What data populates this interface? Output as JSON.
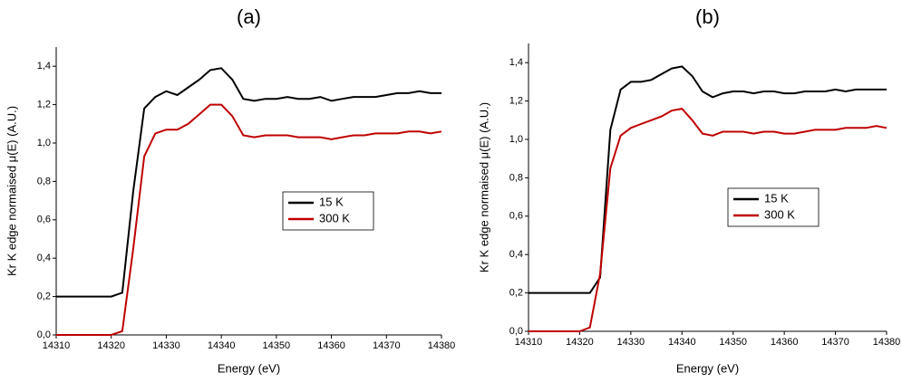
{
  "chart_data": [
    {
      "type": "line",
      "title": "(a)",
      "xlabel": "Energy (eV)",
      "ylabel": "Kr K edge normaised μ(E) (A.U.)",
      "x": [
        14310,
        14312,
        14314,
        14316,
        14318,
        14320,
        14322,
        14324,
        14326,
        14328,
        14330,
        14332,
        14334,
        14336,
        14338,
        14340,
        14342,
        14344,
        14346,
        14348,
        14350,
        14352,
        14354,
        14356,
        14358,
        14360,
        14362,
        14364,
        14366,
        14368,
        14370,
        14372,
        14374,
        14376,
        14378,
        14380
      ],
      "series": [
        {
          "name": "15 K",
          "color": "#000000",
          "values": [
            0.2,
            0.2,
            0.2,
            0.2,
            0.2,
            0.2,
            0.22,
            0.75,
            1.18,
            1.24,
            1.27,
            1.25,
            1.29,
            1.33,
            1.38,
            1.39,
            1.33,
            1.23,
            1.22,
            1.23,
            1.23,
            1.24,
            1.23,
            1.23,
            1.24,
            1.22,
            1.23,
            1.24,
            1.24,
            1.24,
            1.25,
            1.26,
            1.26,
            1.27,
            1.26,
            1.26
          ]
        },
        {
          "name": "300 K",
          "color": "#c00000",
          "values": [
            0,
            0,
            0,
            0,
            0,
            0,
            0.02,
            0.45,
            0.93,
            1.05,
            1.07,
            1.07,
            1.1,
            1.15,
            1.2,
            1.2,
            1.14,
            1.04,
            1.03,
            1.04,
            1.04,
            1.04,
            1.03,
            1.03,
            1.03,
            1.02,
            1.03,
            1.04,
            1.04,
            1.05,
            1.05,
            1.05,
            1.06,
            1.06,
            1.05,
            1.06
          ]
        }
      ],
      "xlim": [
        14310,
        14380
      ],
      "xticks": [
        14310,
        14320,
        14330,
        14340,
        14350,
        14360,
        14370,
        14380
      ],
      "ylim": [
        0,
        1.5
      ],
      "yticks": [
        {
          "value": 0,
          "label": "0,0"
        },
        {
          "value": 0.2,
          "label": "0,2"
        },
        {
          "value": 0.4,
          "label": "0,4"
        },
        {
          "value": 0.6,
          "label": "0,6"
        },
        {
          "value": 0.8,
          "label": "0,8"
        },
        {
          "value": 1.0,
          "label": "1,0"
        },
        {
          "value": 1.2,
          "label": "1,2"
        },
        {
          "value": 1.4,
          "label": "1,4"
        }
      ],
      "legend": "center-right"
    },
    {
      "type": "line",
      "title": "(b)",
      "xlabel": "Energy (eV)",
      "ylabel": "Kr K edge normaised μ(E) (A.U.)",
      "x": [
        14310,
        14312,
        14314,
        14316,
        14318,
        14320,
        14322,
        14324,
        14326,
        14328,
        14330,
        14332,
        14334,
        14336,
        14338,
        14340,
        14342,
        14344,
        14346,
        14348,
        14350,
        14352,
        14354,
        14356,
        14358,
        14360,
        14362,
        14364,
        14366,
        14368,
        14370,
        14372,
        14374,
        14376,
        14378,
        14380
      ],
      "series": [
        {
          "name": "15 K",
          "color": "#000000",
          "values": [
            0.2,
            0.2,
            0.2,
            0.2,
            0.2,
            0.2,
            0.2,
            0.28,
            1.05,
            1.26,
            1.3,
            1.3,
            1.31,
            1.34,
            1.37,
            1.38,
            1.33,
            1.25,
            1.22,
            1.24,
            1.25,
            1.25,
            1.24,
            1.25,
            1.25,
            1.24,
            1.24,
            1.25,
            1.25,
            1.25,
            1.26,
            1.25,
            1.26,
            1.26,
            1.26,
            1.26
          ]
        },
        {
          "name": "300 K",
          "color": "#c00000",
          "values": [
            0,
            0,
            0,
            0,
            0,
            0,
            0.02,
            0.3,
            0.85,
            1.02,
            1.06,
            1.08,
            1.1,
            1.12,
            1.15,
            1.16,
            1.1,
            1.03,
            1.02,
            1.04,
            1.04,
            1.04,
            1.03,
            1.04,
            1.04,
            1.03,
            1.03,
            1.04,
            1.05,
            1.05,
            1.05,
            1.06,
            1.06,
            1.06,
            1.07,
            1.06
          ]
        }
      ],
      "xlim": [
        14310,
        14380
      ],
      "xticks": [
        14310,
        14320,
        14330,
        14340,
        14350,
        14360,
        14370,
        14380
      ],
      "ylim": [
        0,
        1.5
      ],
      "yticks": [
        {
          "value": 0,
          "label": "0,0"
        },
        {
          "value": 0.2,
          "label": "0,2"
        },
        {
          "value": 0.4,
          "label": "0,4"
        },
        {
          "value": 0.6,
          "label": "0,6"
        },
        {
          "value": 0.8,
          "label": "0,8"
        },
        {
          "value": 1.0,
          "label": "1,0"
        },
        {
          "value": 1.2,
          "label": "1,2"
        },
        {
          "value": 1.4,
          "label": "1,4"
        }
      ],
      "legend": "center-right"
    }
  ]
}
